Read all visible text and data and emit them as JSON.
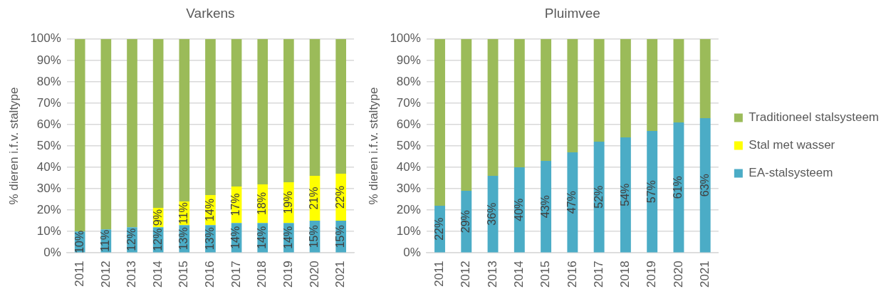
{
  "chart_data": [
    {
      "type": "bar",
      "title": "Varkens",
      "ylabel": "% dieren i.f.v. staltype",
      "categories": [
        "2011",
        "2012",
        "2013",
        "2014",
        "2015",
        "2016",
        "2017",
        "2018",
        "2019",
        "2020",
        "2021"
      ],
      "stacked": true,
      "ylim": [
        0,
        100
      ],
      "yticks": [
        {
          "value": 0,
          "label": "0%"
        },
        {
          "value": 10,
          "label": "10%"
        },
        {
          "value": 20,
          "label": "20%"
        },
        {
          "value": 30,
          "label": "30%"
        },
        {
          "value": 40,
          "label": "40%"
        },
        {
          "value": 50,
          "label": "50%"
        },
        {
          "value": 60,
          "label": "60%"
        },
        {
          "value": 70,
          "label": "70%"
        },
        {
          "value": 80,
          "label": "80%"
        },
        {
          "value": 90,
          "label": "90%"
        },
        {
          "value": 100,
          "label": "100%"
        }
      ],
      "grid": "y",
      "series": [
        {
          "color": "#4bacc6",
          "values": [
            10,
            11,
            12,
            12,
            13,
            13,
            14,
            14,
            14,
            15,
            15
          ],
          "value_labels": [
            "10%",
            "11%",
            "12%",
            "12%",
            "13%",
            "13%",
            "14%",
            "14%",
            "14%",
            "15%",
            "15%"
          ]
        },
        {
          "color": "#ffff00",
          "values": [
            null,
            null,
            null,
            9,
            11,
            14,
            17,
            18,
            19,
            21,
            22
          ],
          "value_labels": [
            null,
            null,
            null,
            "9%",
            "11%",
            "14%",
            "17%",
            "18%",
            "19%",
            "21%",
            "22%"
          ]
        },
        {
          "color": "#9bbb59",
          "values": [
            90,
            89,
            88,
            79,
            76,
            73,
            69,
            68,
            67,
            64,
            63
          ]
        }
      ]
    },
    {
      "type": "bar",
      "title": "Pluimvee",
      "ylabel": "% dieren i.f.v. staltype",
      "categories": [
        "2011",
        "2012",
        "2013",
        "2014",
        "2015",
        "2016",
        "2017",
        "2018",
        "2019",
        "2020",
        "2021"
      ],
      "stacked": true,
      "ylim": [
        0,
        100
      ],
      "yticks": [
        {
          "value": 0,
          "label": "0%"
        },
        {
          "value": 10,
          "label": "10%"
        },
        {
          "value": 20,
          "label": "20%"
        },
        {
          "value": 30,
          "label": "30%"
        },
        {
          "value": 40,
          "label": "40%"
        },
        {
          "value": 50,
          "label": "50%"
        },
        {
          "value": 60,
          "label": "60%"
        },
        {
          "value": 70,
          "label": "70%"
        },
        {
          "value": 80,
          "label": "80%"
        },
        {
          "value": 90,
          "label": "90%"
        },
        {
          "value": 100,
          "label": "100%"
        }
      ],
      "grid": "y",
      "legend": "right",
      "series": [
        {
          "name": "EA-stalsysteem",
          "color": "#4bacc6",
          "values": [
            22,
            29,
            36,
            40,
            43,
            47,
            52,
            54,
            57,
            61,
            63
          ],
          "value_labels": [
            "22%",
            "29%",
            "36%",
            "40%",
            "43%",
            "47%",
            "52%",
            "54%",
            "57%",
            "61%",
            "63%"
          ]
        },
        {
          "name": "Stal met wasser",
          "color": "#ffff00",
          "values": [
            null,
            null,
            null,
            null,
            null,
            null,
            null,
            null,
            null,
            null,
            null
          ]
        },
        {
          "name": "Traditioneel stalsysteem",
          "color": "#9bbb59",
          "values": [
            78,
            71,
            64,
            60,
            57,
            53,
            48,
            46,
            43,
            39,
            37
          ]
        }
      ]
    }
  ]
}
